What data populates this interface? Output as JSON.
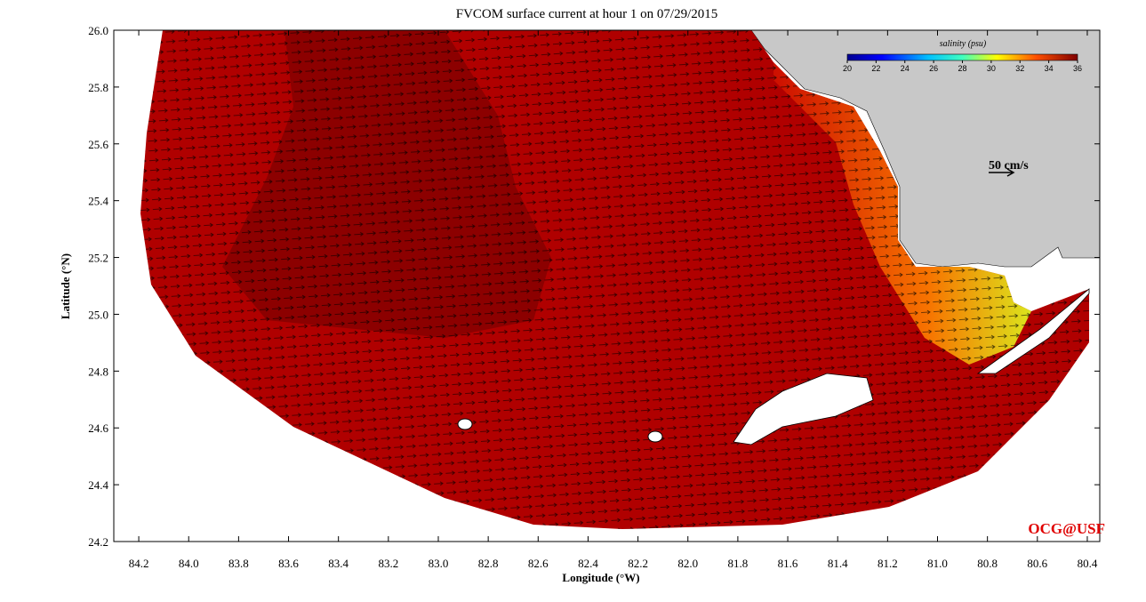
{
  "map": {
    "title": "FVCOM surface current at hour 1 on 07/29/2015",
    "xlabel": "Longitude (°W)",
    "ylabel": "Latitude (°N)",
    "xlim": [
      84.3,
      80.35
    ],
    "ylim": [
      24.2,
      26.0
    ],
    "xticks": [
      84.2,
      {
        "value": 84.0,
        "label": "84.0"
      },
      83.8,
      83.6,
      83.4,
      83.2,
      {
        "value": 83.0,
        "label": "83.0"
      },
      82.8,
      82.6,
      82.4,
      82.2,
      {
        "value": 82.0,
        "label": "82.0"
      },
      81.8,
      81.6,
      81.4,
      81.2,
      {
        "value": 81.0,
        "label": "81.0"
      },
      80.8,
      80.6,
      80.4
    ],
    "yticks": [
      24.2,
      24.4,
      24.6,
      24.8,
      {
        "value": 25.0,
        "label": "25.0"
      },
      25.2,
      25.4,
      25.6,
      25.8,
      {
        "value": 26.0,
        "label": "26.0"
      }
    ],
    "colorbar": {
      "label": "salinity (psu)",
      "clim": [
        20,
        36
      ],
      "ticks": [
        20,
        22,
        24,
        26,
        28,
        30,
        32,
        34,
        36
      ]
    },
    "scale_label": "50 cm/s",
    "credit": "OCG@USF"
  }
}
